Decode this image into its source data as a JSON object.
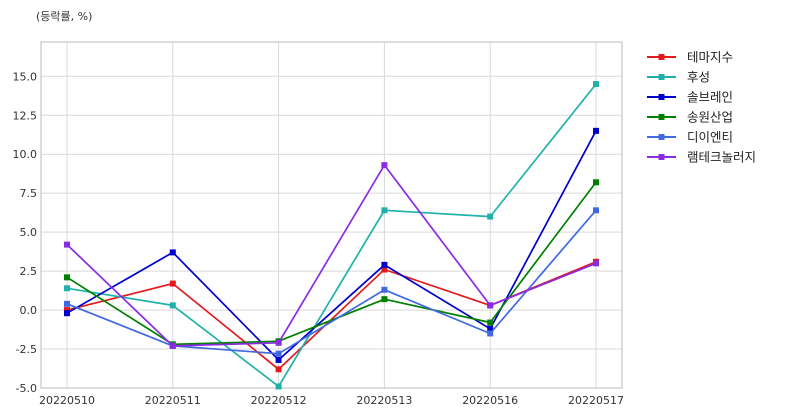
{
  "chart_data": {
    "type": "line",
    "unit_label": "(등락률, %)",
    "x": [
      "20220510",
      "20220511",
      "20220512",
      "20220513",
      "20220516",
      "20220517"
    ],
    "yticks": [
      -5.0,
      -2.5,
      0.0,
      2.5,
      5.0,
      7.5,
      10.0,
      12.5,
      15.0
    ],
    "ylim": [
      -5.0,
      17.2
    ],
    "grid": true,
    "legend_position": "right",
    "series": [
      {
        "name": "테마지수",
        "color": "#e31a1c",
        "values": [
          0.0,
          1.7,
          -3.8,
          2.6,
          0.3,
          3.1
        ]
      },
      {
        "name": "후성",
        "color": "#20b2aa",
        "values": [
          1.4,
          0.3,
          -4.9,
          6.4,
          6.0,
          14.5
        ]
      },
      {
        "name": "솔브레인",
        "color": "#0000cd",
        "values": [
          -0.2,
          3.7,
          -3.2,
          2.9,
          -1.2,
          11.5
        ]
      },
      {
        "name": "송원산업",
        "color": "#008000",
        "values": [
          2.1,
          -2.2,
          -2.0,
          0.7,
          -0.8,
          8.2
        ]
      },
      {
        "name": "디이엔티",
        "color": "#4169e1",
        "values": [
          0.4,
          -2.3,
          -2.8,
          1.3,
          -1.5,
          6.4
        ]
      },
      {
        "name": "램테크놀러지",
        "color": "#8a2be2",
        "values": [
          4.2,
          -2.3,
          -2.1,
          9.3,
          0.3,
          3.0
        ]
      }
    ]
  }
}
